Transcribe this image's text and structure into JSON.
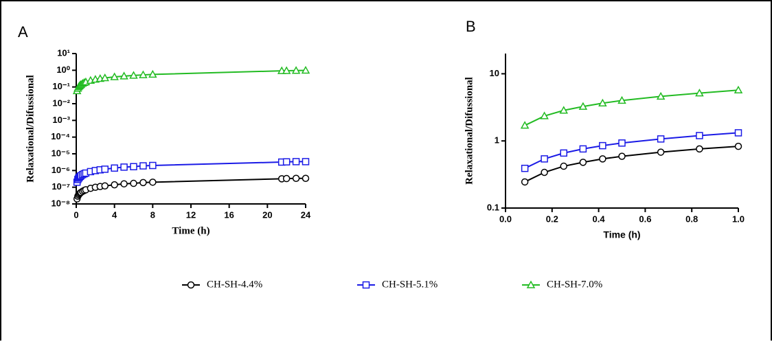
{
  "chart_data": [
    {
      "type": "line",
      "label": "A",
      "xlabel": "Time (h)",
      "ylabel": "Relaxational/Difussional",
      "ylog": true,
      "x": [
        0.083,
        0.167,
        0.25,
        0.333,
        0.417,
        0.5,
        0.667,
        0.833,
        1,
        1.5,
        2,
        2.5,
        3,
        4,
        5,
        6,
        7,
        8,
        21.5,
        22,
        23,
        24
      ],
      "xlim": [
        0,
        24
      ],
      "xticks": [
        0,
        4,
        8,
        12,
        16,
        20,
        24
      ],
      "ylim": [
        1e-08,
        10
      ],
      "yticks": [
        {
          "value": 1e-08,
          "label": "10⁻⁸"
        },
        {
          "value": 1e-07,
          "label": "10⁻⁷"
        },
        {
          "value": 1e-06,
          "label": "10⁻⁶"
        },
        {
          "value": 1e-05,
          "label": "10⁻⁵"
        },
        {
          "value": 0.0001,
          "label": "10⁻⁴"
        },
        {
          "value": 0.001,
          "label": "10⁻³"
        },
        {
          "value": 0.01,
          "label": "10⁻²"
        },
        {
          "value": 0.1,
          "label": "10⁻¹"
        },
        {
          "value": 1,
          "label": "10⁰"
        },
        {
          "value": 10,
          "label": "10¹"
        }
      ],
      "series": [
        {
          "name": "CH-SH-4.4%",
          "color": "#000000",
          "marker": "circle",
          "values": [
            2e-08,
            2.9e-08,
            3.5e-08,
            4e-08,
            4.5e-08,
            4.9e-08,
            5.7e-08,
            6.4e-08,
            7e-08,
            8.6e-08,
            9.9e-08,
            1.1e-07,
            1.2e-07,
            1.4e-07,
            1.6e-07,
            1.7e-07,
            1.9e-07,
            2e-07,
            3.2e-07,
            3.3e-07,
            3.4e-07,
            3.4e-07
          ]
        },
        {
          "name": "CH-SH-5.1%",
          "color": "#1a1ae6",
          "marker": "square",
          "values": [
            2e-07,
            2.9e-07,
            3.5e-07,
            4e-07,
            4.5e-07,
            4.9e-07,
            5.7e-07,
            6.4e-07,
            7e-07,
            8.6e-07,
            9.9e-07,
            1.1e-06,
            1.2e-06,
            1.4e-06,
            1.6e-06,
            1.7e-06,
            1.9e-06,
            2e-06,
            3.2e-06,
            3.3e-06,
            3.4e-06,
            3.4e-06
          ]
        },
        {
          "name": "CH-SH-7.0%",
          "color": "#22bb22",
          "marker": "triangle",
          "values": [
            0.058,
            0.082,
            0.1,
            0.115,
            0.129,
            0.141,
            0.163,
            0.183,
            0.2,
            0.245,
            0.283,
            0.316,
            0.346,
            0.4,
            0.447,
            0.49,
            0.529,
            0.566,
            0.927,
            0.938,
            0.959,
            0.98
          ]
        }
      ]
    },
    {
      "type": "line",
      "label": "B",
      "xlabel": "Time (h)",
      "ylabel": "Relaxational/Difussional",
      "ylog": true,
      "x": [
        0.083,
        0.167,
        0.25,
        0.333,
        0.417,
        0.5,
        0.667,
        0.833,
        1
      ],
      "xlim": [
        0,
        1
      ],
      "xticks": [
        {
          "value": 0,
          "label": "0.0"
        },
        0.2,
        0.4,
        0.6,
        0.8,
        {
          "value": 1,
          "label": "1.0"
        }
      ],
      "ylim": [
        0.1,
        20
      ],
      "yticks": [
        0.1,
        1,
        10
      ],
      "series": [
        {
          "name": "CH-SH-4.4%",
          "color": "#000000",
          "marker": "circle",
          "values": [
            0.245,
            0.34,
            0.42,
            0.48,
            0.54,
            0.59,
            0.68,
            0.76,
            0.83
          ]
        },
        {
          "name": "CH-SH-5.1%",
          "color": "#1a1ae6",
          "marker": "square",
          "values": [
            0.39,
            0.54,
            0.66,
            0.76,
            0.85,
            0.93,
            1.07,
            1.2,
            1.32
          ]
        },
        {
          "name": "CH-SH-7.0%",
          "color": "#22bb22",
          "marker": "triangle",
          "values": [
            1.7,
            2.35,
            2.85,
            3.25,
            3.65,
            4.0,
            4.6,
            5.15,
            5.7
          ]
        }
      ]
    }
  ]
}
